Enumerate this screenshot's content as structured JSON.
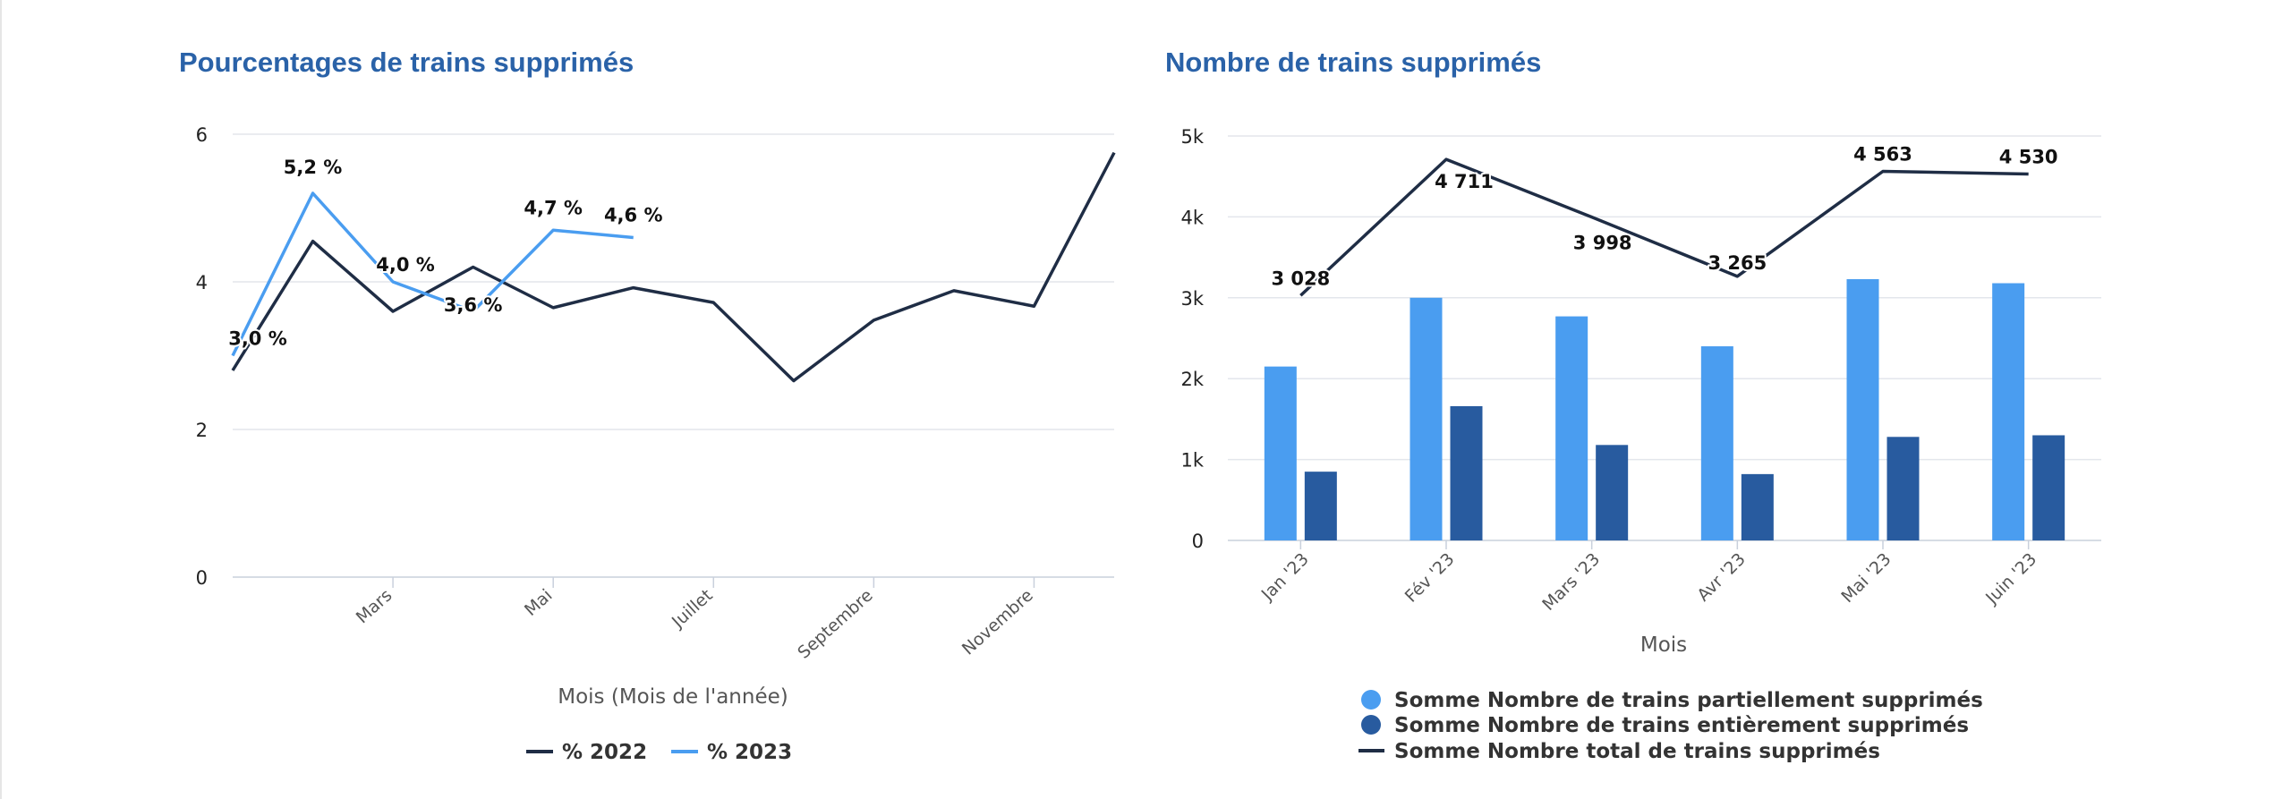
{
  "chart_data": [
    {
      "type": "line",
      "title": "Pourcentages de trains supprimés",
      "xlabel": "Mois (Mois de l'année)",
      "ylabel": "",
      "ylim": [
        0,
        6
      ],
      "yticks": [
        "0",
        "2",
        "4",
        "6"
      ],
      "x_ticks": [
        "Mars",
        "Mai",
        "Juillet",
        "Septembre",
        "Novembre"
      ],
      "grid": true,
      "legend_position": "bottom",
      "colors": {
        "% 2022": "#1f2d45",
        "% 2023": "#4a9df0"
      },
      "series": [
        {
          "name": "% 2022",
          "values": [
            2.8,
            4.55,
            3.6,
            4.2,
            3.65,
            3.92,
            3.72,
            2.66,
            3.48,
            3.88,
            3.67,
            5.75
          ]
        },
        {
          "name": "% 2023",
          "values": [
            3.0,
            5.2,
            4.0,
            3.6,
            4.7,
            4.6
          ],
          "labels": [
            "3,0 %",
            "5,2 %",
            "4,0 %",
            "3,6 %",
            "4,7 %",
            "4,6 %"
          ]
        }
      ]
    },
    {
      "type": "bar",
      "title": "Nombre de trains supprimés",
      "xlabel": "Mois",
      "ylabel": "",
      "ylim": [
        0,
        5000
      ],
      "yticks": [
        "0",
        "1k",
        "2k",
        "3k",
        "4k",
        "5k"
      ],
      "categories": [
        "Jan '23",
        "Fév '23",
        "Mars '23",
        "Avr '23",
        "Mai '23",
        "Juin '23"
      ],
      "grid": true,
      "legend_position": "bottom",
      "colors": {
        "partial": "#4a9df0",
        "full": "#285b9f",
        "total": "#1f2d45"
      },
      "series": [
        {
          "name": "Somme Nombre de trains partiellement supprimés",
          "type": "bar",
          "values": [
            2150,
            3000,
            2770,
            2400,
            3230,
            3180
          ]
        },
        {
          "name": "Somme Nombre de trains entièrement supprimés",
          "type": "bar",
          "values": [
            850,
            1660,
            1180,
            820,
            1280,
            1300
          ]
        },
        {
          "name": "Somme Nombre total de trains supprimés",
          "type": "line",
          "values": [
            3028,
            4711,
            3998,
            3265,
            4563,
            4530
          ],
          "labels": [
            "3 028",
            "4 711",
            "3 998",
            "3 265",
            "4 563",
            "4 530"
          ]
        }
      ]
    }
  ]
}
